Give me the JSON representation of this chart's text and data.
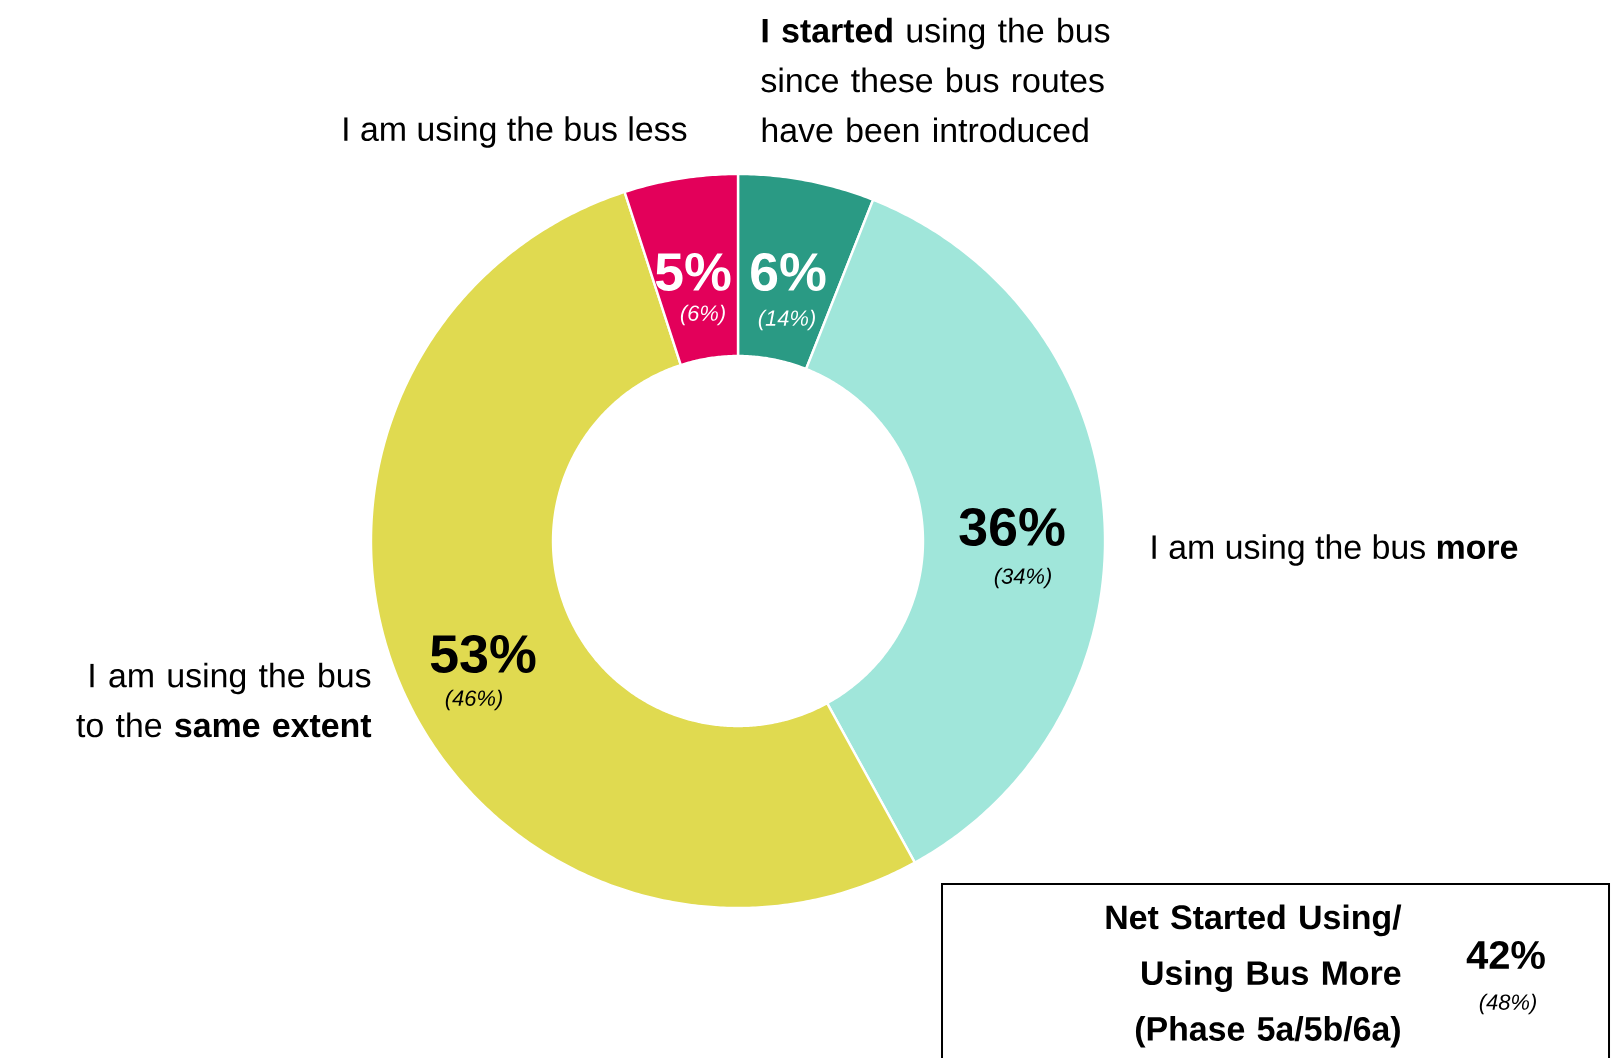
{
  "chart_data": {
    "type": "donut",
    "categories": [
      "**I started** using the bus since these bus routes have been introduced",
      "I am using the bus **more**",
      "I am using the bus to the **same extent**",
      "I am using the bus less"
    ],
    "values": [
      6,
      36,
      53,
      5
    ],
    "value_labels": [
      "6%",
      "36%",
      "53%",
      "5%"
    ],
    "colors": [
      "#2a9a84",
      "#a0e6da",
      "#e0da50",
      "#e3005a"
    ],
    "annotations": [
      "(14%)",
      "(34%)",
      "(46%)",
      "(6%)",
      "**Net Started Using/ Using Bus More (Phase 5a/5b/6a)**",
      "**42%**",
      "(48%)"
    ]
  }
}
